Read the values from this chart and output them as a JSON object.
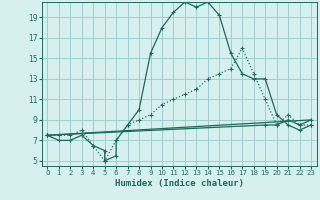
{
  "xlabel": "Humidex (Indice chaleur)",
  "bg_color": "#d6f0f0",
  "grid_color": "#9ecece",
  "line_color": "#1a6b5a",
  "xlim": [
    -0.5,
    23.5
  ],
  "ylim": [
    4.5,
    20.5
  ],
  "xticks": [
    0,
    1,
    2,
    3,
    4,
    5,
    6,
    7,
    8,
    9,
    10,
    11,
    12,
    13,
    14,
    15,
    16,
    17,
    18,
    19,
    20,
    21,
    22,
    23
  ],
  "yticks": [
    5,
    7,
    9,
    11,
    13,
    15,
    17,
    19
  ],
  "series1_x": [
    0,
    1,
    2,
    3,
    4,
    5,
    5,
    6,
    6,
    7,
    8,
    9,
    10,
    11,
    12,
    13,
    14,
    15,
    16,
    17,
    18,
    19,
    20,
    21,
    22,
    23
  ],
  "series1_y": [
    7.5,
    7.0,
    7.0,
    7.5,
    6.5,
    6.0,
    5.0,
    5.5,
    7.0,
    8.5,
    10.0,
    15.5,
    18.0,
    19.5,
    20.5,
    20.0,
    20.5,
    19.2,
    15.5,
    13.5,
    13.0,
    13.0,
    9.5,
    8.5,
    8.0,
    8.5
  ],
  "series2_x": [
    0,
    1,
    2,
    3,
    4,
    5,
    6,
    7,
    8,
    9,
    10,
    11,
    12,
    13,
    14,
    15,
    16,
    17,
    18,
    19,
    20,
    21,
    22,
    23
  ],
  "series2_y": [
    7.5,
    7.5,
    7.5,
    8.0,
    6.5,
    5.0,
    7.0,
    8.5,
    9.0,
    9.5,
    10.5,
    11.0,
    11.5,
    12.0,
    13.0,
    13.5,
    14.0,
    16.0,
    13.5,
    11.0,
    8.5,
    9.5,
    8.5,
    8.5
  ],
  "series3_x": [
    0,
    23
  ],
  "series3_y": [
    7.5,
    9.0
  ],
  "series4_x": [
    0,
    19,
    20,
    21,
    22,
    23
  ],
  "series4_y": [
    7.5,
    8.5,
    8.5,
    9.0,
    8.5,
    9.0
  ]
}
